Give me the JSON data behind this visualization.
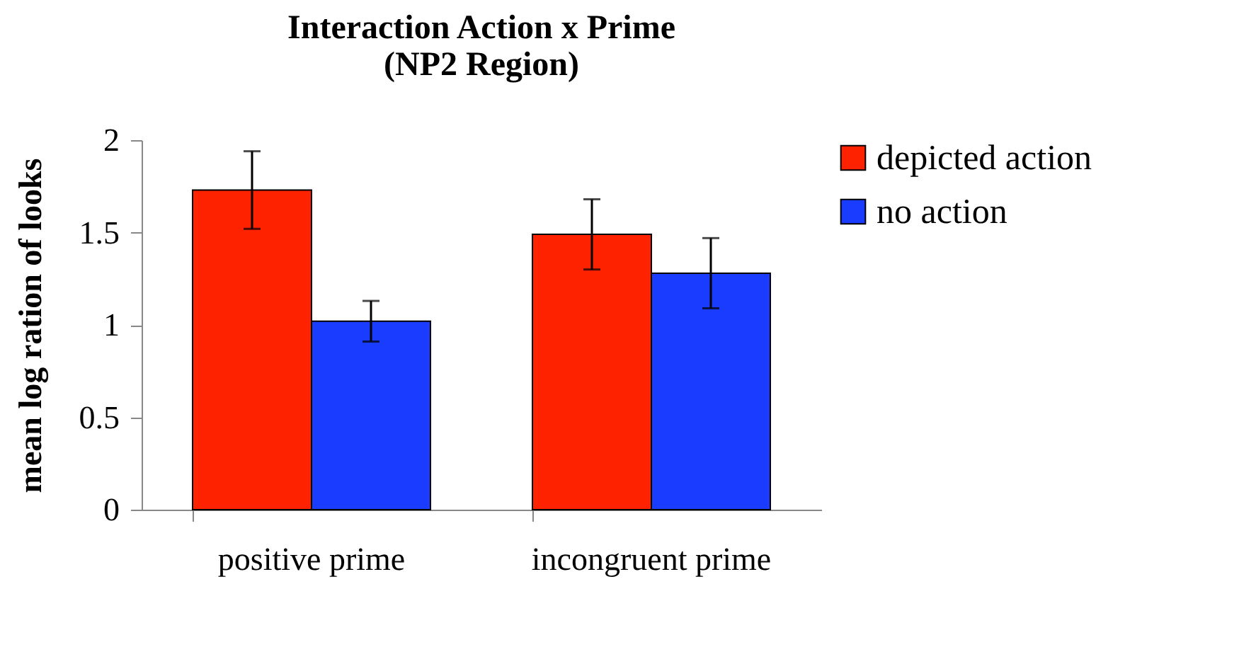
{
  "chart_data": {
    "type": "bar",
    "title": "Interaction Action x Prime\n(NP2 Region)",
    "ylabel": "mean log ration of looks",
    "categories": [
      "positive prime",
      "incongruent prime"
    ],
    "series": [
      {
        "name": "depicted action",
        "color": "#ff2200",
        "values": [
          1.73,
          1.49
        ],
        "errors": [
          0.21,
          0.19
        ]
      },
      {
        "name": "no action",
        "color": "#1a3cff",
        "values": [
          1.02,
          1.28
        ],
        "errors": [
          0.11,
          0.19
        ]
      }
    ],
    "ylim": [
      0,
      2
    ],
    "yticks": [
      0,
      0.5,
      1,
      1.5,
      2
    ],
    "grid": false,
    "legend": "top right"
  }
}
